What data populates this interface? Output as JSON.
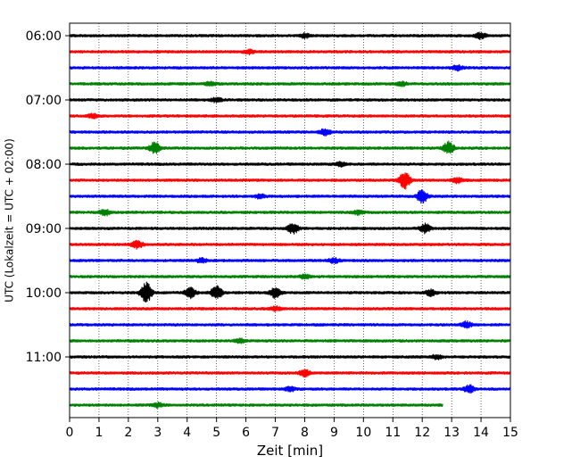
{
  "chart_data": {
    "type": "line",
    "subtype": "helicorder",
    "xlabel": "Zeit  [min]",
    "ylabel": "UTC (Lokalzeit = UTC + 02:00)",
    "xlim": [
      0,
      15
    ],
    "x_ticks": [
      0,
      1,
      2,
      3,
      4,
      5,
      6,
      7,
      8,
      9,
      10,
      11,
      12,
      13,
      14,
      15
    ],
    "y_ticks": [
      "06:00",
      "07:00",
      "08:00",
      "09:00",
      "10:00",
      "11:00"
    ],
    "grid": "vertical dotted",
    "trace_colors": [
      "#000000",
      "#ff0000",
      "#0000ff",
      "#008000"
    ],
    "traces": [
      {
        "start": "06:00",
        "events": [
          {
            "t": 14.0,
            "amp": 1.5
          },
          {
            "t": 8.0,
            "amp": 1.0
          }
        ]
      },
      {
        "start": "06:15",
        "events": [
          {
            "t": 6.1,
            "amp": 1.0
          }
        ]
      },
      {
        "start": "06:30",
        "events": [
          {
            "t": 13.2,
            "amp": 1.2
          }
        ]
      },
      {
        "start": "06:45",
        "events": [
          {
            "t": 4.8,
            "amp": 1.0
          },
          {
            "t": 11.3,
            "amp": 1.0
          }
        ]
      },
      {
        "start": "07:00",
        "events": [
          {
            "t": 5.0,
            "amp": 1.0
          }
        ]
      },
      {
        "start": "07:15",
        "events": [
          {
            "t": 0.8,
            "amp": 1.0
          }
        ]
      },
      {
        "start": "07:30",
        "events": [
          {
            "t": 8.7,
            "amp": 1.5
          }
        ]
      },
      {
        "start": "07:45",
        "events": [
          {
            "t": 2.9,
            "amp": 2.8
          },
          {
            "t": 12.9,
            "amp": 3.0
          }
        ]
      },
      {
        "start": "08:00",
        "events": [
          {
            "t": 9.2,
            "amp": 1.0
          }
        ]
      },
      {
        "start": "08:15",
        "events": [
          {
            "t": 11.4,
            "amp": 4.5
          },
          {
            "t": 13.2,
            "amp": 1.2
          }
        ]
      },
      {
        "start": "08:30",
        "events": [
          {
            "t": 12.0,
            "amp": 3.2
          },
          {
            "t": 6.5,
            "amp": 1.0
          }
        ]
      },
      {
        "start": "08:45",
        "events": [
          {
            "t": 1.2,
            "amp": 1.5
          },
          {
            "t": 9.8,
            "amp": 1.0
          }
        ]
      },
      {
        "start": "09:00",
        "events": [
          {
            "t": 7.6,
            "amp": 2.5
          },
          {
            "t": 12.1,
            "amp": 2.2
          }
        ]
      },
      {
        "start": "09:15",
        "events": [
          {
            "t": 2.3,
            "amp": 2.0
          }
        ]
      },
      {
        "start": "09:30",
        "events": [
          {
            "t": 4.5,
            "amp": 1.0
          },
          {
            "t": 9.0,
            "amp": 1.2
          }
        ]
      },
      {
        "start": "09:45",
        "events": [
          {
            "t": 8.0,
            "amp": 1.0
          }
        ]
      },
      {
        "start": "10:00",
        "events": [
          {
            "t": 2.6,
            "amp": 5.5
          },
          {
            "t": 4.1,
            "amp": 2.5
          },
          {
            "t": 5.0,
            "amp": 3.5
          },
          {
            "t": 7.0,
            "amp": 2.5
          },
          {
            "t": 12.3,
            "amp": 1.5
          }
        ]
      },
      {
        "start": "10:15",
        "events": [
          {
            "t": 7.0,
            "amp": 1.0
          }
        ]
      },
      {
        "start": "10:30",
        "events": [
          {
            "t": 13.5,
            "amp": 1.5
          }
        ]
      },
      {
        "start": "10:45",
        "events": [
          {
            "t": 5.8,
            "amp": 1.0
          }
        ]
      },
      {
        "start": "11:00",
        "events": [
          {
            "t": 12.5,
            "amp": 1.0
          }
        ]
      },
      {
        "start": "11:15",
        "events": [
          {
            "t": 8.0,
            "amp": 1.6
          }
        ]
      },
      {
        "start": "11:30",
        "events": [
          {
            "t": 13.6,
            "amp": 1.8
          },
          {
            "t": 7.5,
            "amp": 1.0
          }
        ]
      },
      {
        "start": "11:45",
        "events": [
          {
            "t": 3.0,
            "amp": 1.0
          }
        ],
        "end_t": 12.7
      }
    ]
  }
}
